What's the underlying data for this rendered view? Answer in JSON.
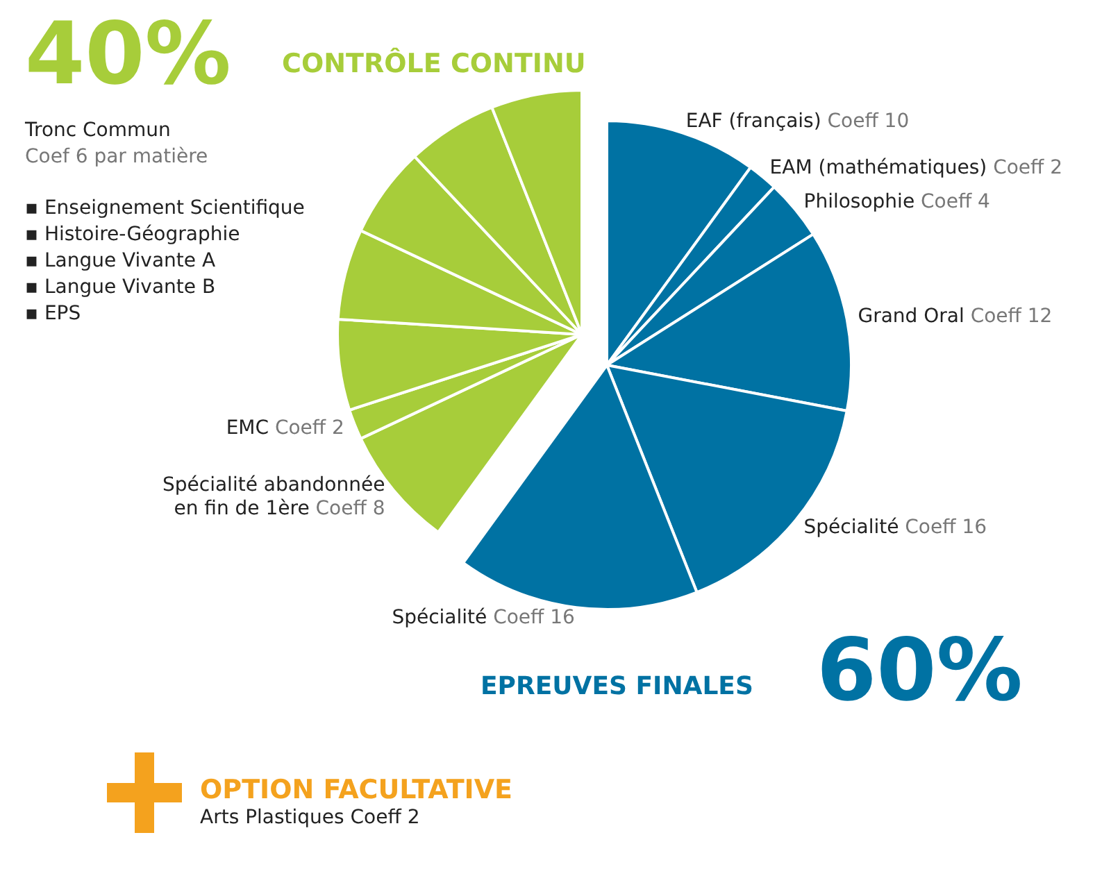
{
  "chart_data": {
    "type": "pie",
    "categories": [
      "EAF (français)",
      "EAM (mathématiques)",
      "Philosophie",
      "Grand Oral",
      "Spécialité",
      "Spécialité",
      "Spécialité abandonnée\nen fin de 1ère",
      "EMC",
      null,
      null,
      null,
      null,
      null
    ],
    "values": [
      10,
      2,
      4,
      12,
      16,
      16,
      8,
      2,
      6,
      6,
      6,
      6,
      6
    ],
    "value_labels": [
      "Coeff 10",
      "Coeff 2",
      "Coeff 4",
      "Coeff 12",
      "Coeff 16",
      "Coeff 16",
      "Coeff 8",
      "Coeff 2",
      null,
      null,
      null,
      null,
      null
    ],
    "colors": [
      "#0072a3",
      "#0072a3",
      "#0072a3",
      "#0072a3",
      "#0072a3",
      "#0072a3",
      "#a7cd3a",
      "#a7cd3a",
      "#a7cd3a",
      "#a7cd3a",
      "#a7cd3a",
      "#a7cd3a",
      "#a7cd3a"
    ],
    "legend": false,
    "annotations": [
      "40%",
      "CONTRÔLE CONTINU",
      "Tronc Commun",
      "Coef 6 par matière",
      "▪ Enseignement Scientifique",
      "▪ Histoire-Géographie",
      "▪ Langue Vivante A",
      "▪ Langue Vivante B",
      "▪ EPS",
      "EPREUVES FINALES",
      "60%",
      "OPTION FACULTATIVE",
      "Arts Plastiques Coeff 2"
    ]
  }
}
